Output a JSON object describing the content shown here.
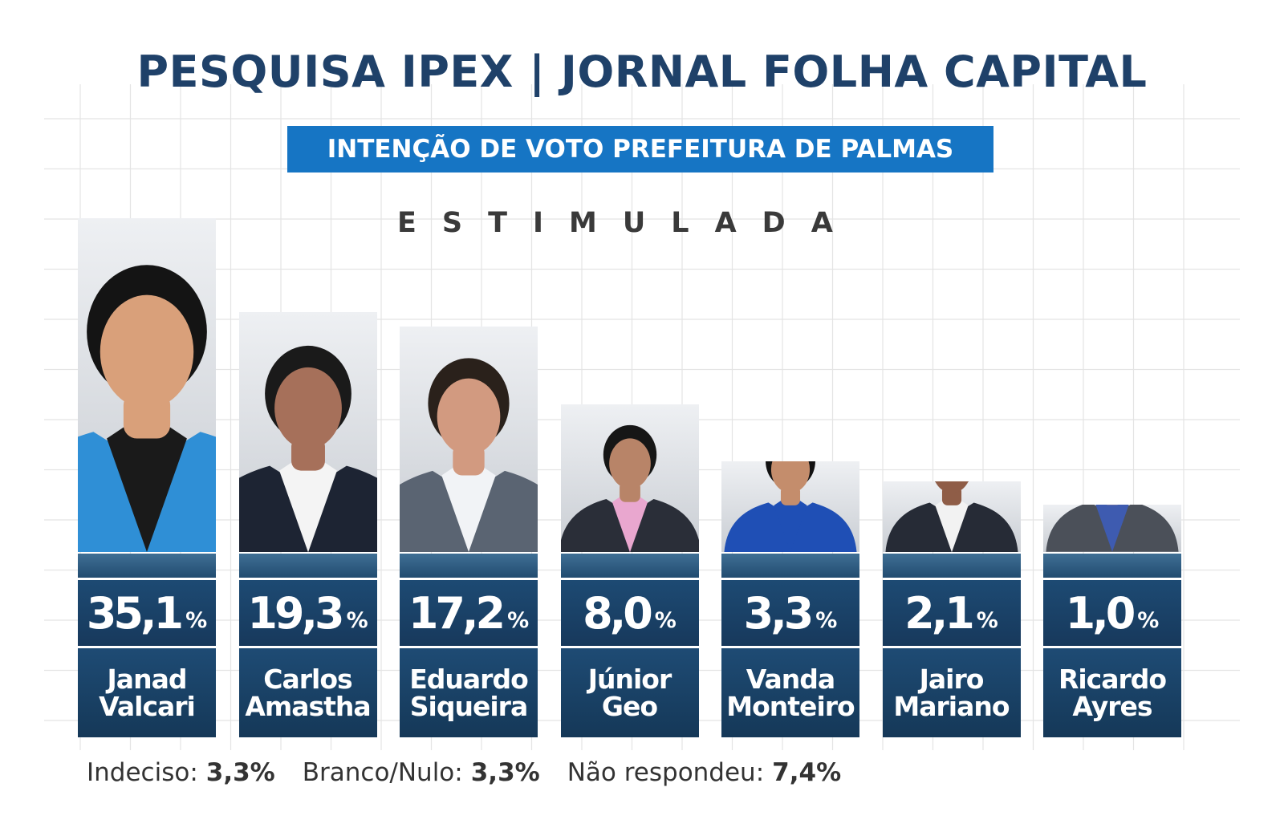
{
  "title": "PESQUISA IPEX | JORNAL FOLHA CAPITAL",
  "subtitle": "INTENÇÃO DE VOTO PREFEITURA DE PALMAS",
  "survey_type": "ESTIMULADA",
  "percent_sign": "%",
  "colors": {
    "title": "#1f4169",
    "banner": "#1675c4",
    "bar_dark": "#17395c",
    "bar_light": "#3f6f95"
  },
  "chart_data": {
    "type": "bar",
    "title": "PESQUISA IPEX | JORNAL FOLHA CAPITAL",
    "subtitle": "INTENÇÃO DE VOTO PREFEITURA DE PALMAS",
    "xlabel": "",
    "ylabel": "",
    "unit": "%",
    "categories": [
      "Janad Valcari",
      "Carlos Amastha",
      "Eduardo Siqueira",
      "Júnior Geo",
      "Vanda Monteiro",
      "Jairo Mariano",
      "Ricardo Ayres"
    ],
    "values": [
      35.1,
      19.3,
      17.2,
      8.0,
      3.3,
      2.1,
      1.0
    ],
    "value_labels": [
      "35,1",
      "19,3",
      "17,2",
      "8,0",
      "3,3",
      "2,1",
      "1,0"
    ],
    "name_lines": [
      [
        "Janad",
        "Valcari"
      ],
      [
        "Carlos",
        "Amastha"
      ],
      [
        "Eduardo",
        "Siqueira"
      ],
      [
        "Júnior",
        "Geo"
      ],
      [
        "Vanda",
        "Monteiro"
      ],
      [
        "Jairo",
        "Mariano"
      ],
      [
        "Ricardo",
        "Ayres"
      ]
    ],
    "photo_suits": [
      "#2f8fd6",
      "#1d2433",
      "#5a6472",
      "#2a2e38",
      "#1f4fb5",
      "#262b36",
      "#4b5059"
    ],
    "photo_shirts": [
      "#1a1a1a",
      "#f4f4f4",
      "#f1f3f6",
      "#e9a7cf",
      "#1f4fb5",
      "#f2f2f2",
      "#3e5bb0"
    ],
    "photo_hair": [
      "#141414",
      "#1a1a1a",
      "#2a211b",
      "#161616",
      "#121212",
      "#161616",
      "#1c1c1c"
    ],
    "photo_skin": [
      "#d9a07a",
      "#a6705a",
      "#d29a80",
      "#b88468",
      "#c48d6c",
      "#8f5d47",
      "#c99a80"
    ]
  },
  "footer": {
    "undecided_label": "Indeciso:",
    "undecided_value": "3,3%",
    "blank_label": "Branco/Nulo:",
    "blank_value": "3,3%",
    "no_answer_label": "Não respondeu:",
    "no_answer_value": "7,4%"
  }
}
